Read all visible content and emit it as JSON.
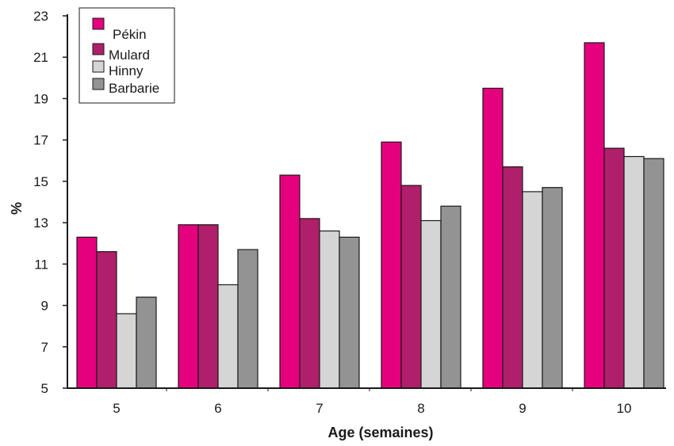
{
  "chart_data": {
    "type": "bar",
    "xlabel": "Age (semaines)",
    "ylabel": "%",
    "ylim": [
      5,
      23
    ],
    "yticks": [
      5,
      7,
      9,
      11,
      13,
      15,
      17,
      19,
      21,
      23
    ],
    "categories": [
      "5",
      "6",
      "7",
      "8",
      "9",
      "10"
    ],
    "legend_position": "top-left",
    "grid": false,
    "series": [
      {
        "name": "Pékin",
        "color": "#e5007e",
        "values": [
          12.3,
          12.9,
          15.3,
          16.9,
          19.5,
          21.7
        ]
      },
      {
        "name": "Mulard",
        "color": "#b01f6a",
        "values": [
          11.6,
          12.9,
          13.2,
          14.8,
          15.7,
          16.6
        ]
      },
      {
        "name": "Hinny",
        "color": "#d5d5d5",
        "values": [
          8.6,
          10.0,
          12.6,
          13.1,
          14.5,
          16.2
        ]
      },
      {
        "name": "Barbarie",
        "color": "#939393",
        "values": [
          9.4,
          11.7,
          12.3,
          13.8,
          14.7,
          16.1
        ]
      }
    ]
  }
}
